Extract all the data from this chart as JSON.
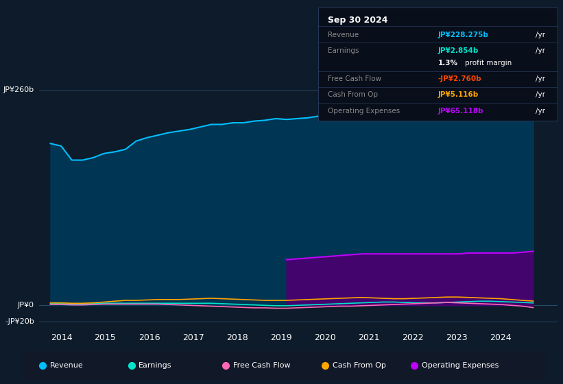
{
  "bg_color": "#0d1b2a",
  "plot_bg_color": "#0d1b2a",
  "x_labels": [
    "2014",
    "2015",
    "2016",
    "2017",
    "2018",
    "2019",
    "2020",
    "2021",
    "2022",
    "2023",
    "2024"
  ],
  "ylim": [
    -30,
    280
  ],
  "info_box": {
    "date": "Sep 30 2024",
    "rows": [
      {
        "label": "Revenue",
        "value": "JP¥228.275b",
        "color": "#00bfff"
      },
      {
        "label": "Earnings",
        "value": "JP¥2.854b",
        "color": "#00e5cc"
      },
      {
        "label": "",
        "value": "1.3% profit margin",
        "color": "#ffffff"
      },
      {
        "label": "Free Cash Flow",
        "value": "-JP¥2.760b",
        "color": "#ff4500"
      },
      {
        "label": "Cash From Op",
        "value": "JP¥5.116b",
        "color": "#ffa500"
      },
      {
        "label": "Operating Expenses",
        "value": "JP¥65.118b",
        "color": "#bf00ff"
      }
    ]
  },
  "legend": [
    {
      "label": "Revenue",
      "color": "#00bfff"
    },
    {
      "label": "Earnings",
      "color": "#00e5cc"
    },
    {
      "label": "Free Cash Flow",
      "color": "#ff69b4"
    },
    {
      "label": "Cash From Op",
      "color": "#ffa500"
    },
    {
      "label": "Operating Expenses",
      "color": "#bf00ff"
    }
  ],
  "revenue": [
    195,
    192,
    175,
    175,
    178,
    183,
    185,
    188,
    198,
    202,
    205,
    208,
    210,
    212,
    215,
    218,
    218,
    220,
    220,
    222,
    223,
    225,
    224,
    225,
    226,
    228,
    227,
    228,
    230,
    232,
    234,
    236,
    238,
    240,
    238,
    236,
    235,
    236,
    238,
    240,
    242,
    244,
    243,
    244,
    245,
    228
  ],
  "earnings": [
    2,
    2,
    1.5,
    1.5,
    2,
    2.5,
    2.5,
    2.5,
    2.5,
    2.5,
    2.5,
    2.5,
    2.5,
    2.5,
    2.5,
    2.5,
    2,
    1.5,
    1,
    0.5,
    0,
    -0.5,
    -0.5,
    0,
    0.5,
    1,
    1.5,
    2,
    2.5,
    3,
    3.5,
    4,
    4,
    3.5,
    3,
    3,
    3,
    3.5,
    4,
    4.5,
    5,
    5,
    4.5,
    4,
    3.5,
    2.854
  ],
  "free_cash_flow": [
    1,
    1,
    0.5,
    0.5,
    1,
    1.5,
    1.5,
    1.5,
    1.5,
    1.5,
    1.5,
    1,
    0.5,
    0,
    -0.5,
    -1,
    -1.5,
    -2,
    -2.5,
    -3,
    -3,
    -3.5,
    -3.5,
    -3,
    -2.5,
    -2,
    -1.5,
    -1,
    -1,
    -0.5,
    0,
    0.5,
    1,
    1.5,
    2,
    2.5,
    3,
    3.5,
    3,
    2.5,
    2,
    1.5,
    1,
    0,
    -1,
    -2.76
  ],
  "cash_from_op": [
    3,
    3,
    2.5,
    2.5,
    3,
    4,
    5,
    6,
    6,
    6.5,
    7,
    7,
    7,
    7.5,
    8,
    8.5,
    8,
    7.5,
    7,
    6.5,
    6,
    6,
    6,
    6.5,
    7,
    7.5,
    8,
    8.5,
    9,
    9.5,
    9,
    8.5,
    8,
    8,
    8.5,
    9,
    9.5,
    10,
    10,
    9.5,
    9,
    8.5,
    8,
    7,
    6,
    5.116
  ],
  "op_expenses": [
    0,
    0,
    0,
    0,
    0,
    0,
    0,
    0,
    0,
    0,
    0,
    0,
    0,
    0,
    0,
    0,
    0,
    0,
    0,
    0,
    0,
    0,
    55,
    56,
    57,
    58,
    59,
    60,
    61,
    62,
    62,
    62,
    62,
    62,
    62,
    62,
    62,
    62,
    62,
    63,
    63,
    63,
    63,
    63,
    64,
    65.118
  ],
  "ylabel_top": "JP¥260b",
  "ylabel_zero": "JP¥0",
  "ylabel_neg": "-JP¥20b"
}
